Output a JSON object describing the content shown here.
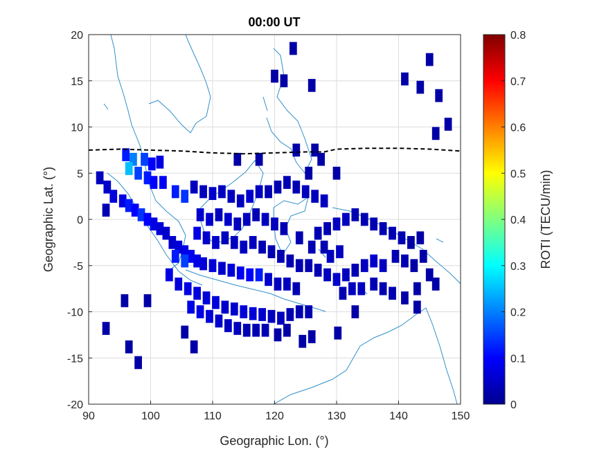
{
  "chart_data": {
    "type": "heatmap",
    "title": "00:00 UT",
    "xlabel": "Geographic Lon. (°)",
    "ylabel": "Geographic Lat. (°)",
    "colorbar_label": "ROTI (TECU/min)",
    "xlim": [
      90,
      150
    ],
    "ylim": [
      -20,
      20
    ],
    "xticks": [
      "90",
      "100",
      "110",
      "120",
      "130",
      "140",
      "150"
    ],
    "yticks": [
      "20",
      "15",
      "10",
      "5",
      "0",
      "-5",
      "-10",
      "-15",
      "-20"
    ],
    "colorbar_range": [
      0,
      0.8
    ],
    "colorbar_ticks": [
      "0.8",
      "0.7",
      "0.6",
      "0.5",
      "0.4",
      "0.3",
      "0.2",
      "0.1",
      "0"
    ],
    "colormap": "jet",
    "grid": true,
    "cell_size_deg": [
      1.2,
      1.4
    ],
    "equator_line_style": "dashed black",
    "equator_line": [
      [
        90,
        7.5
      ],
      [
        95,
        7.6
      ],
      [
        100,
        7.5
      ],
      [
        105,
        7.4
      ],
      [
        110,
        7.2
      ],
      [
        115,
        7.1
      ],
      [
        120,
        7.2
      ],
      [
        125,
        7.3
      ],
      [
        128,
        7.3
      ],
      [
        130,
        7.6
      ],
      [
        135,
        7.7
      ],
      [
        140,
        7.7
      ],
      [
        145,
        7.6
      ],
      [
        150,
        7.4
      ]
    ],
    "cells": [
      [
        123,
        18.5,
        0.03
      ],
      [
        120,
        15.5,
        0.03
      ],
      [
        121.5,
        15,
        0.03
      ],
      [
        126,
        14.5,
        0.03
      ],
      [
        141,
        15.2,
        0.03
      ],
      [
        143.5,
        14.3,
        0.03
      ],
      [
        145,
        17.3,
        0.03
      ],
      [
        146.5,
        13.4,
        0.03
      ],
      [
        148,
        10.3,
        0.03
      ],
      [
        146,
        9.3,
        0.03
      ],
      [
        96,
        7,
        0.12
      ],
      [
        97.2,
        6.5,
        0.2
      ],
      [
        99,
        6.5,
        0.15
      ],
      [
        100.2,
        6,
        0.1
      ],
      [
        101.5,
        6.2,
        0.08
      ],
      [
        96.5,
        5.5,
        0.25
      ],
      [
        98,
        5,
        0.15
      ],
      [
        99.5,
        4.5,
        0.12
      ],
      [
        100.5,
        4,
        0.1
      ],
      [
        102,
        4,
        0.09
      ],
      [
        104,
        3,
        0.12
      ],
      [
        105.5,
        2.5,
        0.14
      ],
      [
        91.8,
        4.5,
        0.05
      ],
      [
        93,
        3.5,
        0.06
      ],
      [
        94,
        2.5,
        0.07
      ],
      [
        95.5,
        2,
        0.08
      ],
      [
        96.5,
        1.5,
        0.12
      ],
      [
        97.5,
        1,
        0.1
      ],
      [
        92.8,
        1,
        0.04
      ],
      [
        98.5,
        0.5,
        0.14
      ],
      [
        99.5,
        0,
        0.1
      ],
      [
        100.5,
        -0.5,
        0.08
      ],
      [
        101.5,
        -1,
        0.07
      ],
      [
        102.5,
        -1.5,
        0.06
      ],
      [
        103.5,
        -2.5,
        0.06
      ],
      [
        104.5,
        -3,
        0.07
      ],
      [
        105.5,
        -3.5,
        0.08
      ],
      [
        106.5,
        -4,
        0.09
      ],
      [
        107.5,
        -4.5,
        0.08
      ],
      [
        108.5,
        -4.8,
        0.07
      ],
      [
        110,
        -5,
        0.07
      ],
      [
        111.5,
        -5.3,
        0.06
      ],
      [
        113,
        -5.5,
        0.07
      ],
      [
        114.5,
        -5.8,
        0.09
      ],
      [
        116,
        -6,
        0.1
      ],
      [
        117.5,
        -6,
        0.12
      ],
      [
        119,
        -6.5,
        0.06
      ],
      [
        120.5,
        -7,
        0.05
      ],
      [
        122,
        -7,
        0.05
      ],
      [
        123.5,
        -7.5,
        0.04
      ],
      [
        105.5,
        -4.5,
        0.15
      ],
      [
        104,
        -4,
        0.12
      ],
      [
        103,
        -6,
        0.08
      ],
      [
        104.5,
        -7,
        0.07
      ],
      [
        106,
        -7.5,
        0.08
      ],
      [
        107.5,
        -8,
        0.07
      ],
      [
        109,
        -8.5,
        0.07
      ],
      [
        110.5,
        -9,
        0.07
      ],
      [
        112,
        -9.5,
        0.06
      ],
      [
        113.5,
        -9.7,
        0.06
      ],
      [
        115,
        -10,
        0.07
      ],
      [
        116.5,
        -10.2,
        0.07
      ],
      [
        118,
        -10.3,
        0.06
      ],
      [
        119.5,
        -10.5,
        0.05
      ],
      [
        121,
        -10.7,
        0.05
      ],
      [
        122.5,
        -10.3,
        0.04
      ],
      [
        124,
        -10,
        0.04
      ],
      [
        125.5,
        -10,
        0.04
      ],
      [
        106.5,
        -9.5,
        0.08
      ],
      [
        108,
        -10,
        0.08
      ],
      [
        109.5,
        -10.5,
        0.07
      ],
      [
        111,
        -11,
        0.06
      ],
      [
        112.5,
        -11.5,
        0.05
      ],
      [
        114,
        -11.8,
        0.05
      ],
      [
        115.5,
        -12,
        0.04
      ],
      [
        117,
        -12,
        0.04
      ],
      [
        118.5,
        -12,
        0.04
      ],
      [
        120.5,
        -12.5,
        0.03
      ],
      [
        122,
        -12,
        0.03
      ],
      [
        124.5,
        -13.2,
        0.03
      ],
      [
        126,
        -12.7,
        0.03
      ],
      [
        92.8,
        -11.8,
        0.03
      ],
      [
        96.5,
        -13.8,
        0.03
      ],
      [
        98,
        -15.5,
        0.03
      ],
      [
        95.8,
        -8.8,
        0.03
      ],
      [
        99.5,
        -8.8,
        0.03
      ],
      [
        105.5,
        -12.2,
        0.03
      ],
      [
        107,
        -13.8,
        0.03
      ],
      [
        130.2,
        -12.3,
        0.03
      ],
      [
        133,
        -10,
        0.03
      ],
      [
        143,
        -9.5,
        0.03
      ],
      [
        107,
        3.5,
        0.05
      ],
      [
        108.5,
        3,
        0.05
      ],
      [
        110,
        2.8,
        0.06
      ],
      [
        111.5,
        3,
        0.05
      ],
      [
        113,
        2.5,
        0.05
      ],
      [
        114.5,
        2,
        0.05
      ],
      [
        116,
        2.5,
        0.06
      ],
      [
        117.5,
        3,
        0.05
      ],
      [
        119,
        3,
        0.04
      ],
      [
        120.5,
        3.5,
        0.04
      ],
      [
        122,
        4,
        0.04
      ],
      [
        123.5,
        3.5,
        0.04
      ],
      [
        125,
        3,
        0.05
      ],
      [
        126.5,
        2.5,
        0.05
      ],
      [
        128,
        2,
        0.05
      ],
      [
        114,
        6.5,
        0.03
      ],
      [
        117.5,
        6.5,
        0.03
      ],
      [
        123.5,
        7.5,
        0.03
      ],
      [
        126.5,
        7.5,
        0.03
      ],
      [
        127.5,
        6.5,
        0.03
      ],
      [
        130,
        5,
        0.03
      ],
      [
        125.5,
        5,
        0.03
      ],
      [
        108,
        0.5,
        0.06
      ],
      [
        109.5,
        0,
        0.06
      ],
      [
        111,
        0.5,
        0.05
      ],
      [
        112.5,
        0,
        0.06
      ],
      [
        114,
        -0.5,
        0.05
      ],
      [
        115.5,
        0,
        0.05
      ],
      [
        117,
        0.5,
        0.04
      ],
      [
        118.5,
        0,
        0.05
      ],
      [
        120,
        -0.5,
        0.05
      ],
      [
        121.5,
        -1,
        0.04
      ],
      [
        107.5,
        -1.5,
        0.08
      ],
      [
        109,
        -2,
        0.06
      ],
      [
        110.5,
        -2.5,
        0.06
      ],
      [
        112,
        -2,
        0.05
      ],
      [
        113.5,
        -2.5,
        0.05
      ],
      [
        115,
        -3,
        0.05
      ],
      [
        116.5,
        -2.5,
        0.05
      ],
      [
        118,
        -3,
        0.04
      ],
      [
        119.5,
        -3.5,
        0.04
      ],
      [
        121,
        -4,
        0.04
      ],
      [
        122.5,
        -4.5,
        0.04
      ],
      [
        124,
        -5,
        0.04
      ],
      [
        125.5,
        -5,
        0.04
      ],
      [
        127,
        -5.5,
        0.04
      ],
      [
        128.5,
        -6,
        0.05
      ],
      [
        130,
        -6.5,
        0.06
      ],
      [
        131.5,
        -6,
        0.05
      ],
      [
        133,
        -5.5,
        0.04
      ],
      [
        134.5,
        -5,
        0.05
      ],
      [
        136,
        -4.5,
        0.06
      ],
      [
        137.5,
        -5,
        0.05
      ],
      [
        127,
        -1.5,
        0.04
      ],
      [
        128.5,
        -1,
        0.04
      ],
      [
        130,
        -0.5,
        0.05
      ],
      [
        131.5,
        0,
        0.05
      ],
      [
        133,
        0.5,
        0.04
      ],
      [
        134.5,
        0,
        0.04
      ],
      [
        136,
        -0.5,
        0.04
      ],
      [
        137.5,
        -1,
        0.04
      ],
      [
        139,
        -1.5,
        0.04
      ],
      [
        140.5,
        -2,
        0.04
      ],
      [
        142,
        -2.5,
        0.03
      ],
      [
        143.5,
        -2,
        0.03
      ],
      [
        139.5,
        -4,
        0.04
      ],
      [
        141,
        -4.5,
        0.04
      ],
      [
        142.5,
        -5,
        0.03
      ],
      [
        144,
        -4,
        0.03
      ],
      [
        145,
        -6,
        0.03
      ],
      [
        143,
        -7.5,
        0.03
      ],
      [
        146,
        -7,
        0.03
      ],
      [
        136,
        -7,
        0.04
      ],
      [
        137.5,
        -7.5,
        0.04
      ],
      [
        139,
        -8,
        0.04
      ],
      [
        141,
        -8.5,
        0.03
      ],
      [
        131,
        -8,
        0.04
      ],
      [
        132.5,
        -7.5,
        0.05
      ],
      [
        134,
        -7.5,
        0.05
      ],
      [
        129,
        -4,
        0.05
      ],
      [
        130.5,
        -3.5,
        0.05
      ],
      [
        126,
        -3,
        0.04
      ],
      [
        128,
        -3,
        0.04
      ],
      [
        124,
        -2,
        0.04
      ]
    ]
  }
}
